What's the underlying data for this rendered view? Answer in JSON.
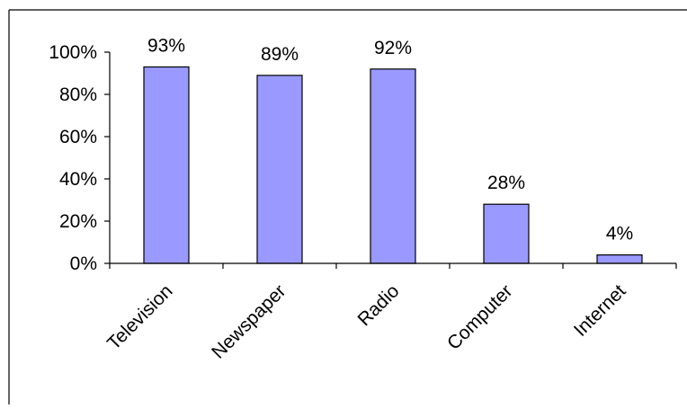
{
  "chart_data": {
    "type": "bar",
    "title": "",
    "xlabel": "",
    "ylabel": "",
    "categories": [
      "Television",
      "Newspaper",
      "Radio",
      "Computer",
      "Internet"
    ],
    "values": [
      93,
      89,
      92,
      28,
      4
    ],
    "data_labels": [
      "93%",
      "89%",
      "92%",
      "28%",
      "4%"
    ],
    "ylim": [
      0,
      100
    ],
    "yticks": [
      0,
      20,
      40,
      60,
      80,
      100
    ],
    "ytick_labels": [
      "0%",
      "20%",
      "40%",
      "60%",
      "80%",
      "100%"
    ],
    "grid": false,
    "legend": "none",
    "colors": {
      "bar_fill": "#9999FF",
      "bar_stroke": "#000000",
      "axis": "#000000",
      "frame": "#000000"
    }
  }
}
